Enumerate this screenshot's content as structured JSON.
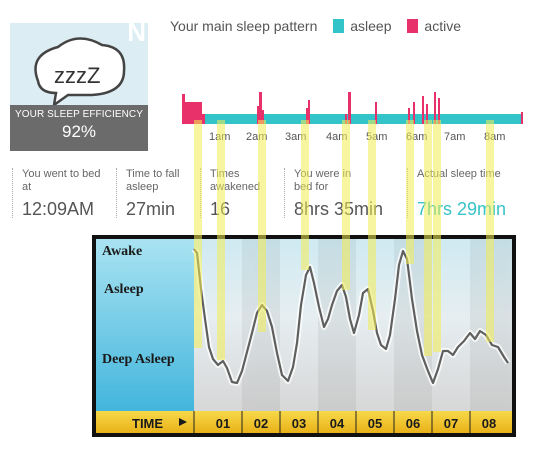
{
  "colors": {
    "asleep": "#33c4c9",
    "active": "#e8316a",
    "highlight": "#f5f27a"
  },
  "efficiency": {
    "icon": "zzz-cloud-icon",
    "zzz_text": "zzzZ",
    "corner_letter": "N",
    "label": "YOUR SLEEP EFFICIENCY",
    "value": "92%"
  },
  "legend": {
    "title": "Your main sleep pattern",
    "items": [
      {
        "label": "asleep",
        "color": "#33c4c9"
      },
      {
        "label": "active",
        "color": "#e8316a"
      }
    ]
  },
  "pattern": {
    "hours": [
      "1am",
      "2am",
      "3am",
      "4am",
      "5am",
      "6am",
      "7am",
      "8am"
    ]
  },
  "stats": [
    {
      "label": "You went to bed at",
      "value": "12:09AM"
    },
    {
      "label": "Time to fall asleep",
      "value": "27min"
    },
    {
      "label": "Times awakened",
      "value": "16"
    },
    {
      "label": "You were in bed for",
      "value": "8hrs 35min"
    },
    {
      "label": "Actual sleep time",
      "value": "7hrs 29min"
    }
  ],
  "chart": {
    "y_labels": [
      "Awake",
      "Asleep",
      "Deep Asleep"
    ],
    "time_label": "TIME",
    "ticks": [
      "01",
      "02",
      "03",
      "04",
      "05",
      "06",
      "07",
      "08"
    ]
  }
}
